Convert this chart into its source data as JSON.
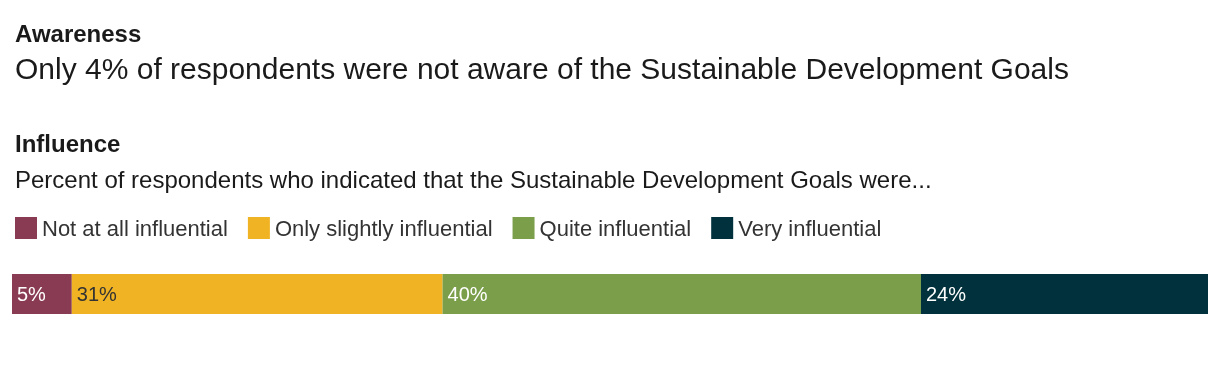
{
  "chart_data": {
    "type": "bar",
    "title": "Awareness",
    "subtitle": "Only 4% of respondents were not aware of the Sustainable Development Goals",
    "annotations": [
      "Influence",
      "Percent of respondents who indicated that the Sustainable Development Goals were..."
    ],
    "categories": [
      null
    ],
    "stacked": true,
    "orientation": "horizontal",
    "legend": "top left",
    "grid": false,
    "series": [
      {
        "name": "Not at all influential",
        "color": "#8a3b54",
        "values": [
          5
        ],
        "value_labels": [
          "5%"
        ]
      },
      {
        "name": "Only slightly influential",
        "color": "#f0b323",
        "values": [
          31
        ],
        "value_labels": [
          "31%"
        ]
      },
      {
        "name": "Quite influential",
        "color": "#7a9e4a",
        "values": [
          40
        ],
        "value_labels": [
          "40%"
        ]
      },
      {
        "name": "Very influential",
        "color": "#00313d",
        "values": [
          24
        ],
        "value_labels": [
          "24%"
        ]
      }
    ]
  }
}
